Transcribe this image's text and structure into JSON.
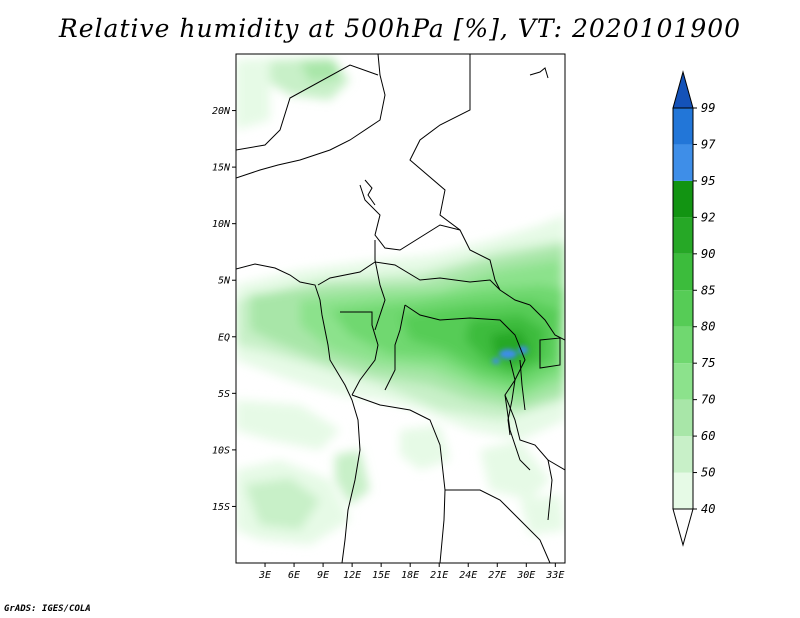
{
  "title": "Relative humidity at 500hPa [%], VT: 2020101900",
  "credit": "GrADS: IGES/COLA",
  "map": {
    "lon_range": [
      0,
      34
    ],
    "lat_range": [
      -20,
      25
    ],
    "lat_labels": [
      "20N",
      "15N",
      "10N",
      "5N",
      "EQ",
      "5S",
      "10S",
      "15S"
    ],
    "lat_values": [
      20,
      15,
      10,
      5,
      0,
      -5,
      -10,
      -15
    ],
    "lon_labels": [
      "3E",
      "6E",
      "9E",
      "12E",
      "15E",
      "18E",
      "21E",
      "24E",
      "27E",
      "30E",
      "33E"
    ],
    "lon_values": [
      3,
      6,
      9,
      12,
      15,
      18,
      21,
      24,
      27,
      30,
      33
    ]
  },
  "colorbar": {
    "levels": [
      "40",
      "50",
      "60",
      "70",
      "75",
      "80",
      "85",
      "90",
      "92",
      "95",
      "97",
      "99"
    ],
    "colors": [
      "#e6fae6",
      "#c8f0c8",
      "#a8e6a8",
      "#8ce28c",
      "#70d870",
      "#56cc56",
      "#3cbc3c",
      "#26a826",
      "#129412",
      "#3e8ee8",
      "#2276d8",
      "#1452b8"
    ]
  }
}
